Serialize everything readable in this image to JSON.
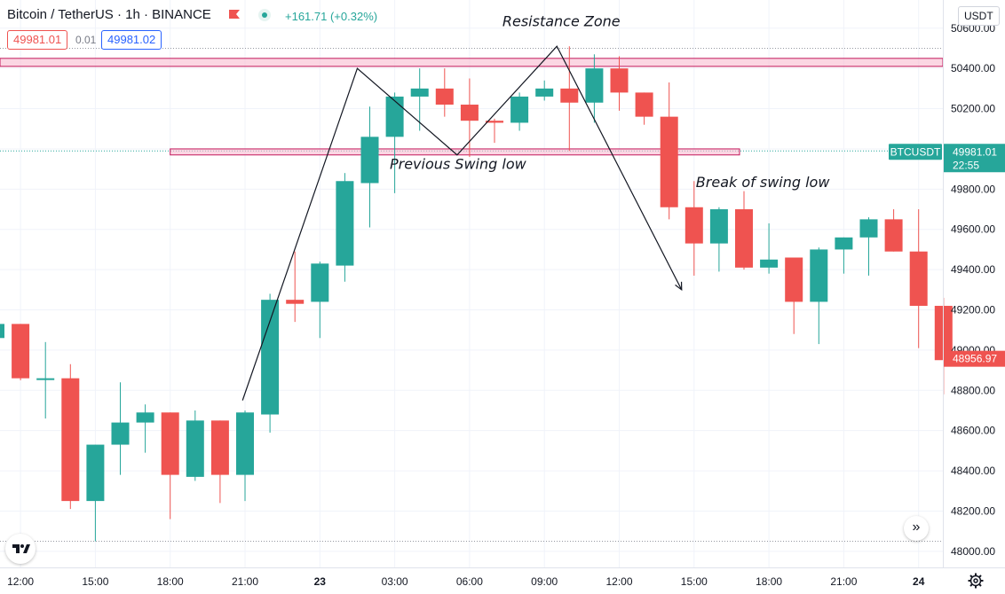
{
  "header": {
    "title": "Bitcoin / TetherUS · 1h · BINANCE",
    "change": "+161.71 (+0.32%)",
    "sell_price": "49981.01",
    "spread": "0.01",
    "buy_price": "49981.02",
    "currency": "USDT",
    "up_color": "#26a69a",
    "down_color": "#ef5350"
  },
  "chart_data": {
    "type": "candlestick",
    "x_ticks": [
      "12:00",
      "15:00",
      "18:00",
      "21:00",
      "23",
      "03:00",
      "06:00",
      "09:00",
      "12:00",
      "15:00",
      "18:00",
      "21:00",
      "24"
    ],
    "y_ticks": [
      "48000.00",
      "48200.00",
      "48400.00",
      "48600.00",
      "48800.00",
      "49000.00",
      "49200.00",
      "49400.00",
      "49600.00",
      "49800.00",
      "50000.00",
      "50200.00",
      "50400.00",
      "50600.00"
    ],
    "ylim": [
      47920,
      50740
    ],
    "candles": [
      {
        "o": 49060,
        "h": 49150,
        "l": 48850,
        "c": 49130
      },
      {
        "o": 49130,
        "h": 49130,
        "l": 48850,
        "c": 48860
      },
      {
        "o": 48860,
        "h": 49040,
        "l": 48660,
        "c": 48860
      },
      {
        "o": 48860,
        "h": 48930,
        "l": 48210,
        "c": 48250
      },
      {
        "o": 48250,
        "h": 48530,
        "l": 48050,
        "c": 48530
      },
      {
        "o": 48530,
        "h": 48840,
        "l": 48380,
        "c": 48640
      },
      {
        "o": 48640,
        "h": 48730,
        "l": 48490,
        "c": 48690
      },
      {
        "o": 48690,
        "h": 48690,
        "l": 48160,
        "c": 48380
      },
      {
        "o": 48370,
        "h": 48700,
        "l": 48350,
        "c": 48650
      },
      {
        "o": 48650,
        "h": 48650,
        "l": 48240,
        "c": 48380
      },
      {
        "o": 48380,
        "h": 48700,
        "l": 48250,
        "c": 48690
      },
      {
        "o": 48680,
        "h": 49280,
        "l": 48590,
        "c": 49250
      },
      {
        "o": 49250,
        "h": 49490,
        "l": 49140,
        "c": 49230
      },
      {
        "o": 49240,
        "h": 49440,
        "l": 49060,
        "c": 49430
      },
      {
        "o": 49420,
        "h": 49880,
        "l": 49340,
        "c": 49840
      },
      {
        "o": 49830,
        "h": 50210,
        "l": 49610,
        "c": 50060
      },
      {
        "o": 50060,
        "h": 50280,
        "l": 49780,
        "c": 50260
      },
      {
        "o": 50260,
        "h": 50400,
        "l": 50090,
        "c": 50300
      },
      {
        "o": 50300,
        "h": 50400,
        "l": 50160,
        "c": 50220
      },
      {
        "o": 50220,
        "h": 50350,
        "l": 49960,
        "c": 50140
      },
      {
        "o": 50140,
        "h": 50150,
        "l": 50030,
        "c": 50130
      },
      {
        "o": 50130,
        "h": 50280,
        "l": 50090,
        "c": 50260
      },
      {
        "o": 50260,
        "h": 50340,
        "l": 50240,
        "c": 50300
      },
      {
        "o": 50300,
        "h": 50510,
        "l": 49990,
        "c": 50230
      },
      {
        "o": 50230,
        "h": 50470,
        "l": 50130,
        "c": 50400
      },
      {
        "o": 50400,
        "h": 50460,
        "l": 50190,
        "c": 50280
      },
      {
        "o": 50280,
        "h": 50280,
        "l": 50120,
        "c": 50160
      },
      {
        "o": 50160,
        "h": 50330,
        "l": 49650,
        "c": 49710
      },
      {
        "o": 49710,
        "h": 49840,
        "l": 49370,
        "c": 49530
      },
      {
        "o": 49530,
        "h": 49710,
        "l": 49390,
        "c": 49700
      },
      {
        "o": 49700,
        "h": 49790,
        "l": 49400,
        "c": 49410
      },
      {
        "o": 49410,
        "h": 49630,
        "l": 49380,
        "c": 49450
      },
      {
        "o": 49460,
        "h": 49460,
        "l": 49080,
        "c": 49240
      },
      {
        "o": 49240,
        "h": 49510,
        "l": 49030,
        "c": 49500
      },
      {
        "o": 49500,
        "h": 49560,
        "l": 49380,
        "c": 49560
      },
      {
        "o": 49560,
        "h": 49660,
        "l": 49370,
        "c": 49650
      },
      {
        "o": 49650,
        "h": 49700,
        "l": 49490,
        "c": 49490
      },
      {
        "o": 49490,
        "h": 49700,
        "l": 49010,
        "c": 49220
      },
      {
        "o": 49220,
        "h": 49260,
        "l": 48780,
        "c": 48950
      }
    ],
    "annotations": {
      "resistance_label": "Resistance Zone",
      "resistance_zone": [
        50410,
        50450
      ],
      "swing_label": "Previous Swing low",
      "swing_zone": [
        49970,
        50000
      ],
      "break_label": "Break of swing low"
    },
    "zigzag": [
      {
        "i": 9.9,
        "p": 48750
      },
      {
        "i": 14.5,
        "p": 50400
      },
      {
        "i": 18.5,
        "p": 49970
      },
      {
        "i": 22.5,
        "p": 50510
      },
      {
        "i": 27.5,
        "p": 49300
      }
    ],
    "reference_lines": [
      50500,
      49990,
      48050
    ],
    "current_label": "BTCUSDT",
    "current_price": "49981.01",
    "current_time": "22:55",
    "last_price": "48956.97"
  }
}
